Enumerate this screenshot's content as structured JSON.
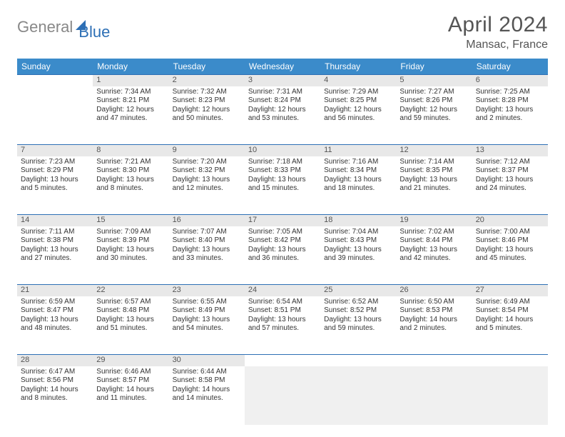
{
  "logo": {
    "gray": "General",
    "blue": "Blue"
  },
  "title": "April 2024",
  "location": "Mansac, France",
  "colors": {
    "header_bg": "#3b8bca",
    "header_text": "#ffffff",
    "daynum_bg": "#e8e8e8",
    "divider": "#2d6fb5",
    "body_text": "#333333",
    "title_text": "#555555"
  },
  "weekdays": [
    "Sunday",
    "Monday",
    "Tuesday",
    "Wednesday",
    "Thursday",
    "Friday",
    "Saturday"
  ],
  "weeks": [
    {
      "nums": [
        "",
        "1",
        "2",
        "3",
        "4",
        "5",
        "6"
      ],
      "cells": [
        null,
        {
          "sr": "Sunrise: 7:34 AM",
          "ss": "Sunset: 8:21 PM",
          "dl": "Daylight: 12 hours and 47 minutes."
        },
        {
          "sr": "Sunrise: 7:32 AM",
          "ss": "Sunset: 8:23 PM",
          "dl": "Daylight: 12 hours and 50 minutes."
        },
        {
          "sr": "Sunrise: 7:31 AM",
          "ss": "Sunset: 8:24 PM",
          "dl": "Daylight: 12 hours and 53 minutes."
        },
        {
          "sr": "Sunrise: 7:29 AM",
          "ss": "Sunset: 8:25 PM",
          "dl": "Daylight: 12 hours and 56 minutes."
        },
        {
          "sr": "Sunrise: 7:27 AM",
          "ss": "Sunset: 8:26 PM",
          "dl": "Daylight: 12 hours and 59 minutes."
        },
        {
          "sr": "Sunrise: 7:25 AM",
          "ss": "Sunset: 8:28 PM",
          "dl": "Daylight: 13 hours and 2 minutes."
        }
      ]
    },
    {
      "nums": [
        "7",
        "8",
        "9",
        "10",
        "11",
        "12",
        "13"
      ],
      "cells": [
        {
          "sr": "Sunrise: 7:23 AM",
          "ss": "Sunset: 8:29 PM",
          "dl": "Daylight: 13 hours and 5 minutes."
        },
        {
          "sr": "Sunrise: 7:21 AM",
          "ss": "Sunset: 8:30 PM",
          "dl": "Daylight: 13 hours and 8 minutes."
        },
        {
          "sr": "Sunrise: 7:20 AM",
          "ss": "Sunset: 8:32 PM",
          "dl": "Daylight: 13 hours and 12 minutes."
        },
        {
          "sr": "Sunrise: 7:18 AM",
          "ss": "Sunset: 8:33 PM",
          "dl": "Daylight: 13 hours and 15 minutes."
        },
        {
          "sr": "Sunrise: 7:16 AM",
          "ss": "Sunset: 8:34 PM",
          "dl": "Daylight: 13 hours and 18 minutes."
        },
        {
          "sr": "Sunrise: 7:14 AM",
          "ss": "Sunset: 8:35 PM",
          "dl": "Daylight: 13 hours and 21 minutes."
        },
        {
          "sr": "Sunrise: 7:12 AM",
          "ss": "Sunset: 8:37 PM",
          "dl": "Daylight: 13 hours and 24 minutes."
        }
      ]
    },
    {
      "nums": [
        "14",
        "15",
        "16",
        "17",
        "18",
        "19",
        "20"
      ],
      "cells": [
        {
          "sr": "Sunrise: 7:11 AM",
          "ss": "Sunset: 8:38 PM",
          "dl": "Daylight: 13 hours and 27 minutes."
        },
        {
          "sr": "Sunrise: 7:09 AM",
          "ss": "Sunset: 8:39 PM",
          "dl": "Daylight: 13 hours and 30 minutes."
        },
        {
          "sr": "Sunrise: 7:07 AM",
          "ss": "Sunset: 8:40 PM",
          "dl": "Daylight: 13 hours and 33 minutes."
        },
        {
          "sr": "Sunrise: 7:05 AM",
          "ss": "Sunset: 8:42 PM",
          "dl": "Daylight: 13 hours and 36 minutes."
        },
        {
          "sr": "Sunrise: 7:04 AM",
          "ss": "Sunset: 8:43 PM",
          "dl": "Daylight: 13 hours and 39 minutes."
        },
        {
          "sr": "Sunrise: 7:02 AM",
          "ss": "Sunset: 8:44 PM",
          "dl": "Daylight: 13 hours and 42 minutes."
        },
        {
          "sr": "Sunrise: 7:00 AM",
          "ss": "Sunset: 8:46 PM",
          "dl": "Daylight: 13 hours and 45 minutes."
        }
      ]
    },
    {
      "nums": [
        "21",
        "22",
        "23",
        "24",
        "25",
        "26",
        "27"
      ],
      "cells": [
        {
          "sr": "Sunrise: 6:59 AM",
          "ss": "Sunset: 8:47 PM",
          "dl": "Daylight: 13 hours and 48 minutes."
        },
        {
          "sr": "Sunrise: 6:57 AM",
          "ss": "Sunset: 8:48 PM",
          "dl": "Daylight: 13 hours and 51 minutes."
        },
        {
          "sr": "Sunrise: 6:55 AM",
          "ss": "Sunset: 8:49 PM",
          "dl": "Daylight: 13 hours and 54 minutes."
        },
        {
          "sr": "Sunrise: 6:54 AM",
          "ss": "Sunset: 8:51 PM",
          "dl": "Daylight: 13 hours and 57 minutes."
        },
        {
          "sr": "Sunrise: 6:52 AM",
          "ss": "Sunset: 8:52 PM",
          "dl": "Daylight: 13 hours and 59 minutes."
        },
        {
          "sr": "Sunrise: 6:50 AM",
          "ss": "Sunset: 8:53 PM",
          "dl": "Daylight: 14 hours and 2 minutes."
        },
        {
          "sr": "Sunrise: 6:49 AM",
          "ss": "Sunset: 8:54 PM",
          "dl": "Daylight: 14 hours and 5 minutes."
        }
      ]
    },
    {
      "nums": [
        "28",
        "29",
        "30",
        "",
        "",
        "",
        ""
      ],
      "cells": [
        {
          "sr": "Sunrise: 6:47 AM",
          "ss": "Sunset: 8:56 PM",
          "dl": "Daylight: 14 hours and 8 minutes."
        },
        {
          "sr": "Sunrise: 6:46 AM",
          "ss": "Sunset: 8:57 PM",
          "dl": "Daylight: 14 hours and 11 minutes."
        },
        {
          "sr": "Sunrise: 6:44 AM",
          "ss": "Sunset: 8:58 PM",
          "dl": "Daylight: 14 hours and 14 minutes."
        },
        "filler",
        "filler",
        "filler",
        "filler"
      ]
    }
  ]
}
